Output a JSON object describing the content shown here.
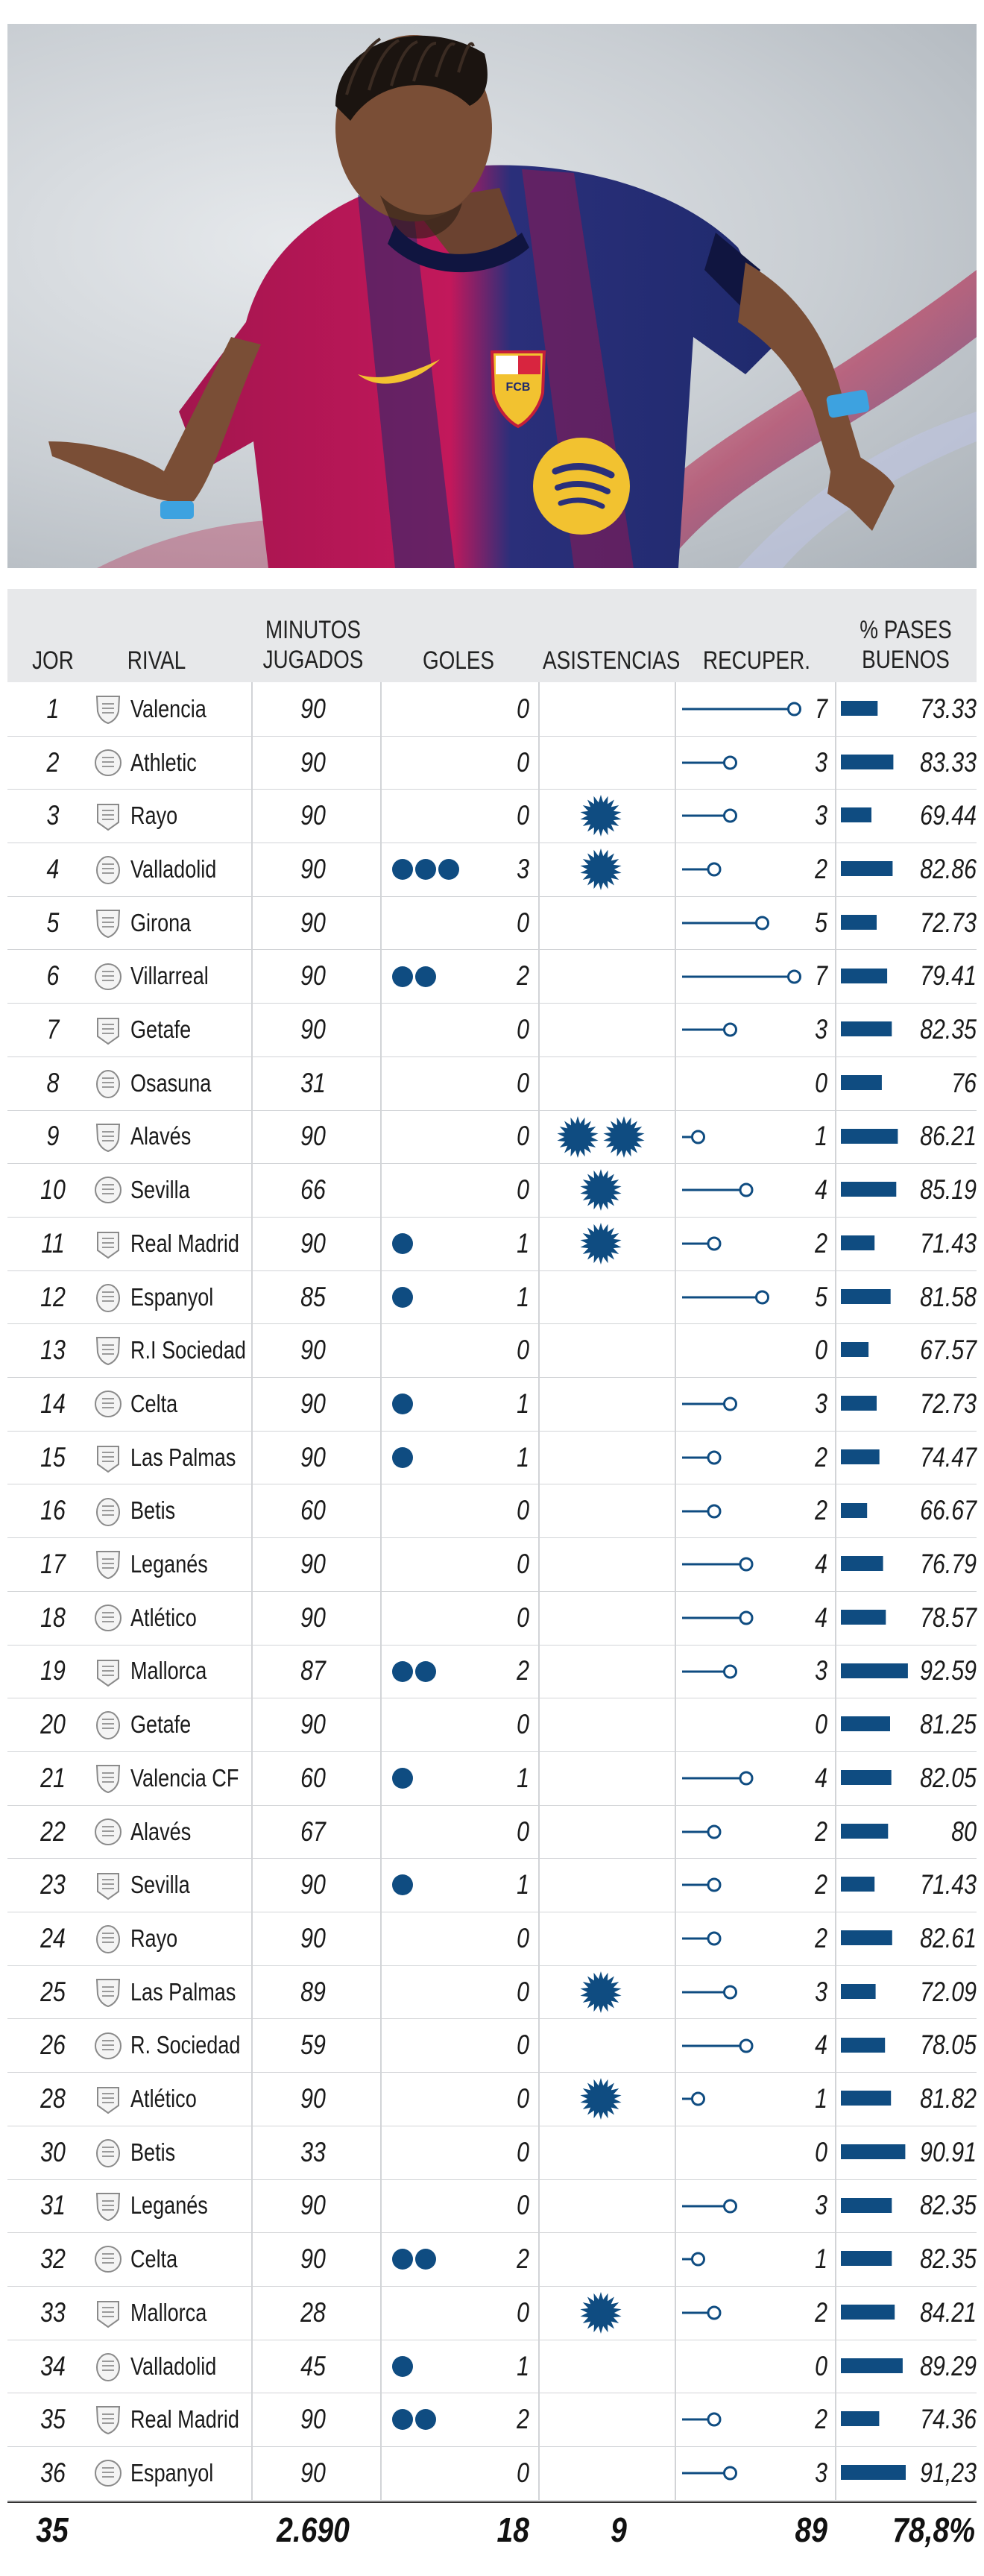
{
  "colors": {
    "accent": "#0f4c81",
    "header_bg": "#e7e8ea",
    "grid": "#d2d4d7"
  },
  "hero": {
    "description_icon": "player-celebrating-photo",
    "shirt_badge_text": "FCB"
  },
  "chart_data": {
    "type": "table",
    "columns": [
      "JOR",
      "RIVAL",
      "MINUTOS JUGADOS",
      "GOLES",
      "ASISTENCIAS",
      "RECUPER.",
      "% PASES BUENOS"
    ],
    "rows": [
      {
        "jor": "1",
        "rival": "Valencia",
        "min": "90",
        "goles": 0,
        "asist": 0,
        "recup": 7,
        "pases": "73.33",
        "pct": 73.33
      },
      {
        "jor": "2",
        "rival": "Athletic",
        "min": "90",
        "goles": 0,
        "asist": 0,
        "recup": 3,
        "pases": "83.33",
        "pct": 83.33
      },
      {
        "jor": "3",
        "rival": "Rayo",
        "min": "90",
        "goles": 0,
        "asist": 1,
        "recup": 3,
        "pases": "69.44",
        "pct": 69.44
      },
      {
        "jor": "4",
        "rival": "Valladolid",
        "min": "90",
        "goles": 3,
        "asist": 1,
        "recup": 2,
        "pases": "82.86",
        "pct": 82.86
      },
      {
        "jor": "5",
        "rival": "Girona",
        "min": "90",
        "goles": 0,
        "asist": 0,
        "recup": 5,
        "pases": "72.73",
        "pct": 72.73
      },
      {
        "jor": "6",
        "rival": "Villarreal",
        "min": "90",
        "goles": 2,
        "asist": 0,
        "recup": 7,
        "pases": "79.41",
        "pct": 79.41
      },
      {
        "jor": "7",
        "rival": "Getafe",
        "min": "90",
        "goles": 0,
        "asist": 0,
        "recup": 3,
        "pases": "82.35",
        "pct": 82.35
      },
      {
        "jor": "8",
        "rival": "Osasuna",
        "min": "31",
        "goles": 0,
        "asist": 0,
        "recup": 0,
        "pases": "76",
        "pct": 76
      },
      {
        "jor": "9",
        "rival": "Alavés",
        "min": "90",
        "goles": 0,
        "asist": 2,
        "recup": 1,
        "pases": "86.21",
        "pct": 86.21
      },
      {
        "jor": "10",
        "rival": "Sevilla",
        "min": "66",
        "goles": 0,
        "asist": 1,
        "recup": 4,
        "pases": "85.19",
        "pct": 85.19
      },
      {
        "jor": "11",
        "rival": "Real Madrid",
        "min": "90",
        "goles": 1,
        "asist": 1,
        "recup": 2,
        "pases": "71.43",
        "pct": 71.43
      },
      {
        "jor": "12",
        "rival": "Espanyol",
        "min": "85",
        "goles": 1,
        "asist": 0,
        "recup": 5,
        "pases": "81.58",
        "pct": 81.58
      },
      {
        "jor": "13",
        "rival": "R.I Sociedad",
        "min": "90",
        "goles": 0,
        "asist": 0,
        "recup": 0,
        "pases": "67.57",
        "pct": 67.57
      },
      {
        "jor": "14",
        "rival": "Celta",
        "min": "90",
        "goles": 1,
        "asist": 0,
        "recup": 3,
        "pases": "72.73",
        "pct": 72.73
      },
      {
        "jor": "15",
        "rival": "Las Palmas",
        "min": "90",
        "goles": 1,
        "asist": 0,
        "recup": 2,
        "pases": "74.47",
        "pct": 74.47
      },
      {
        "jor": "16",
        "rival": "Betis",
        "min": "60",
        "goles": 0,
        "asist": 0,
        "recup": 2,
        "pases": "66.67",
        "pct": 66.67
      },
      {
        "jor": "17",
        "rival": "Leganés",
        "min": "90",
        "goles": 0,
        "asist": 0,
        "recup": 4,
        "pases": "76.79",
        "pct": 76.79
      },
      {
        "jor": "18",
        "rival": "Atlético",
        "min": "90",
        "goles": 0,
        "asist": 0,
        "recup": 4,
        "pases": "78.57",
        "pct": 78.57
      },
      {
        "jor": "19",
        "rival": "Mallorca",
        "min": "87",
        "goles": 2,
        "asist": 0,
        "recup": 3,
        "pases": "92.59",
        "pct": 92.59
      },
      {
        "jor": "20",
        "rival": "Getafe",
        "min": "90",
        "goles": 0,
        "asist": 0,
        "recup": 0,
        "pases": "81.25",
        "pct": 81.25
      },
      {
        "jor": "21",
        "rival": "Valencia CF",
        "min": "60",
        "goles": 1,
        "asist": 0,
        "recup": 4,
        "pases": "82.05",
        "pct": 82.05
      },
      {
        "jor": "22",
        "rival": "Alavés",
        "min": "67",
        "goles": 0,
        "asist": 0,
        "recup": 2,
        "pases": "80",
        "pct": 80
      },
      {
        "jor": "23",
        "rival": "Sevilla",
        "min": "90",
        "goles": 1,
        "asist": 0,
        "recup": 2,
        "pases": "71.43",
        "pct": 71.43
      },
      {
        "jor": "24",
        "rival": "Rayo",
        "min": "90",
        "goles": 0,
        "asist": 0,
        "recup": 2,
        "pases": "82.61",
        "pct": 82.61
      },
      {
        "jor": "25",
        "rival": "Las Palmas",
        "min": "89",
        "goles": 0,
        "asist": 1,
        "recup": 3,
        "pases": "72.09",
        "pct": 72.09
      },
      {
        "jor": "26",
        "rival": "R. Sociedad",
        "min": "59",
        "goles": 0,
        "asist": 0,
        "recup": 4,
        "pases": "78.05",
        "pct": 78.05
      },
      {
        "jor": "28",
        "rival": "Atlético",
        "min": "90",
        "goles": 0,
        "asist": 1,
        "recup": 1,
        "pases": "81.82",
        "pct": 81.82
      },
      {
        "jor": "30",
        "rival": "Betis",
        "min": "33",
        "goles": 0,
        "asist": 0,
        "recup": 0,
        "pases": "90.91",
        "pct": 90.91
      },
      {
        "jor": "31",
        "rival": "Leganés",
        "min": "90",
        "goles": 0,
        "asist": 0,
        "recup": 3,
        "pases": "82.35",
        "pct": 82.35
      },
      {
        "jor": "32",
        "rival": "Celta",
        "min": "90",
        "goles": 2,
        "asist": 0,
        "recup": 1,
        "pases": "82.35",
        "pct": 82.35
      },
      {
        "jor": "33",
        "rival": "Mallorca",
        "min": "28",
        "goles": 0,
        "asist": 1,
        "recup": 2,
        "pases": "84.21",
        "pct": 84.21
      },
      {
        "jor": "34",
        "rival": "Valladolid",
        "min": "45",
        "goles": 1,
        "asist": 0,
        "recup": 0,
        "pases": "89.29",
        "pct": 89.29
      },
      {
        "jor": "35",
        "rival": "Real Madrid",
        "min": "90",
        "goles": 2,
        "asist": 0,
        "recup": 2,
        "pases": "74.36",
        "pct": 74.36
      },
      {
        "jor": "36",
        "rival": "Espanyol",
        "min": "90",
        "goles": 0,
        "asist": 0,
        "recup": 3,
        "pases": "91,23",
        "pct": 91.23
      }
    ],
    "totals": {
      "jor": "35",
      "min": "2.690",
      "goles": "18",
      "asist": "9",
      "recup": "89",
      "pases": "78,8%"
    }
  }
}
